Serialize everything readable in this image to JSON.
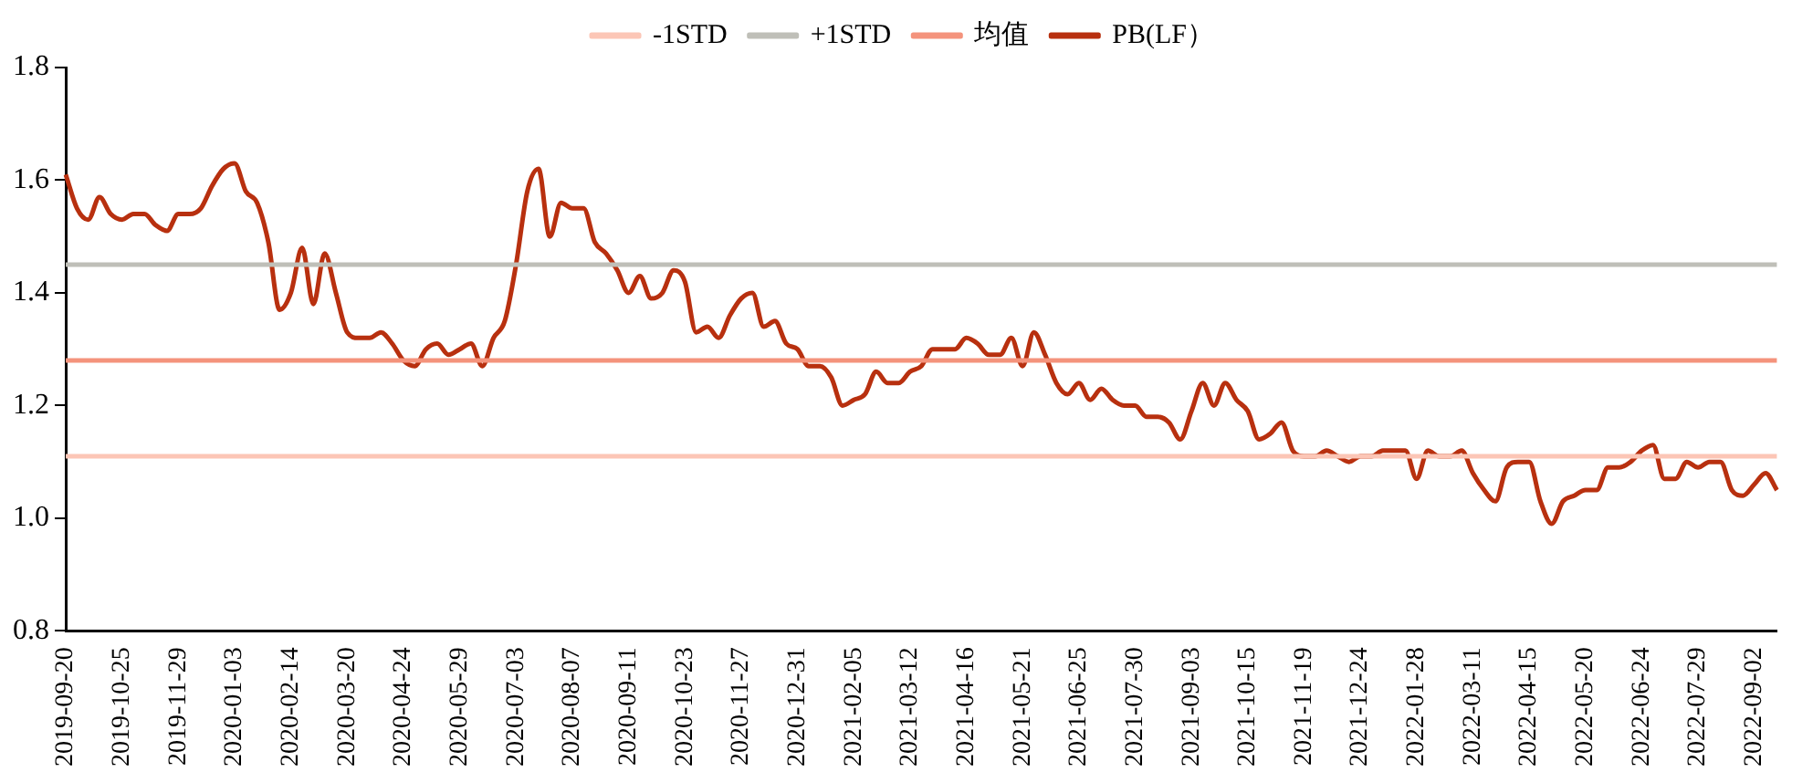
{
  "chart_data": {
    "type": "line",
    "categories": [
      "2019-09-20",
      null,
      null,
      null,
      null,
      "2019-10-25",
      null,
      null,
      null,
      null,
      "2019-11-29",
      null,
      null,
      null,
      null,
      "2020-01-03",
      null,
      null,
      null,
      null,
      "2020-02-14",
      null,
      null,
      null,
      null,
      "2020-03-20",
      null,
      null,
      null,
      null,
      "2020-04-24",
      null,
      null,
      null,
      null,
      "2020-05-29",
      null,
      null,
      null,
      null,
      "2020-07-03",
      null,
      null,
      null,
      null,
      "2020-08-07",
      null,
      null,
      null,
      null,
      "2020-09-11",
      null,
      null,
      null,
      null,
      "2020-10-23",
      null,
      null,
      null,
      null,
      "2020-11-27",
      null,
      null,
      null,
      null,
      "2020-12-31",
      null,
      null,
      null,
      null,
      "2021-02-05",
      null,
      null,
      null,
      null,
      "2021-03-12",
      null,
      null,
      null,
      null,
      "2021-04-16",
      null,
      null,
      null,
      null,
      "2021-05-21",
      null,
      null,
      null,
      null,
      "2021-06-25",
      null,
      null,
      null,
      null,
      "2021-07-30",
      null,
      null,
      null,
      null,
      "2021-09-03",
      null,
      null,
      null,
      null,
      "2021-10-15",
      null,
      null,
      null,
      null,
      "2021-11-19",
      null,
      null,
      null,
      null,
      "2021-12-24",
      null,
      null,
      null,
      null,
      "2022-01-28",
      null,
      null,
      null,
      null,
      "2022-03-11",
      null,
      null,
      null,
      null,
      "2022-04-15",
      null,
      null,
      null,
      null,
      "2022-05-20",
      null,
      null,
      null,
      null,
      "2022-06-24",
      null,
      null,
      null,
      null,
      "2022-07-29",
      null,
      null,
      null,
      null,
      "2022-09-02",
      null,
      null
    ],
    "series": [
      {
        "name": "PB(LF）",
        "color": "#b8300f",
        "values": [
          1.61,
          1.55,
          1.53,
          1.57,
          1.54,
          1.53,
          1.54,
          1.54,
          1.52,
          1.51,
          1.54,
          1.54,
          1.55,
          1.59,
          1.62,
          1.63,
          1.58,
          1.56,
          1.49,
          1.37,
          1.4,
          1.48,
          1.38,
          1.47,
          1.4,
          1.33,
          1.32,
          1.32,
          1.33,
          1.31,
          1.28,
          1.27,
          1.3,
          1.31,
          1.29,
          1.3,
          1.31,
          1.27,
          1.32,
          1.35,
          1.45,
          1.58,
          1.62,
          1.5,
          1.56,
          1.55,
          1.55,
          1.49,
          1.47,
          1.44,
          1.4,
          1.43,
          1.39,
          1.4,
          1.44,
          1.42,
          1.33,
          1.34,
          1.32,
          1.36,
          1.39,
          1.4,
          1.34,
          1.35,
          1.31,
          1.3,
          1.27,
          1.27,
          1.25,
          1.2,
          1.21,
          1.22,
          1.26,
          1.24,
          1.24,
          1.26,
          1.27,
          1.3,
          1.3,
          1.3,
          1.32,
          1.31,
          1.29,
          1.29,
          1.32,
          1.27,
          1.33,
          1.29,
          1.24,
          1.22,
          1.24,
          1.21,
          1.23,
          1.21,
          1.2,
          1.2,
          1.18,
          1.18,
          1.17,
          1.14,
          1.19,
          1.24,
          1.2,
          1.24,
          1.21,
          1.19,
          1.14,
          1.15,
          1.17,
          1.12,
          1.11,
          1.11,
          1.12,
          1.11,
          1.1,
          1.11,
          1.11,
          1.12,
          1.12,
          1.12,
          1.07,
          1.12,
          1.11,
          1.11,
          1.12,
          1.08,
          1.05,
          1.03,
          1.09,
          1.1,
          1.1,
          1.03,
          0.99,
          1.03,
          1.04,
          1.05,
          1.05,
          1.09,
          1.09,
          1.1,
          1.12,
          1.13,
          1.07,
          1.07,
          1.1,
          1.09,
          1.1,
          1.1,
          1.05,
          1.04,
          1.06,
          1.08,
          1.05
        ]
      },
      {
        "name": "均值",
        "color": "#f4937c",
        "values": [
          1.28,
          1.28,
          1.28,
          1.28,
          1.28,
          1.28,
          1.28,
          1.28,
          1.28,
          1.28,
          1.28,
          1.28,
          1.28,
          1.28,
          1.28,
          1.28,
          1.28,
          1.28,
          1.28,
          1.28,
          1.28,
          1.28,
          1.28,
          1.28,
          1.28,
          1.28,
          1.28,
          1.28,
          1.28,
          1.28,
          1.28,
          1.28,
          1.28,
          1.28,
          1.28,
          1.28,
          1.28,
          1.28,
          1.28,
          1.28,
          1.28,
          1.28,
          1.28,
          1.28,
          1.28,
          1.28,
          1.28,
          1.28,
          1.28,
          1.28,
          1.28,
          1.28,
          1.28,
          1.28,
          1.28,
          1.28,
          1.28,
          1.28,
          1.28,
          1.28,
          1.28,
          1.28,
          1.28,
          1.28,
          1.28,
          1.28,
          1.28,
          1.28,
          1.28,
          1.28,
          1.28,
          1.28,
          1.28,
          1.28,
          1.28,
          1.28,
          1.28,
          1.28,
          1.28,
          1.28,
          1.28,
          1.28,
          1.28,
          1.28,
          1.28,
          1.28,
          1.28,
          1.28,
          1.28,
          1.28,
          1.28,
          1.28,
          1.28,
          1.28,
          1.28,
          1.28,
          1.28,
          1.28,
          1.28,
          1.28,
          1.28,
          1.28,
          1.28,
          1.28,
          1.28,
          1.28,
          1.28,
          1.28,
          1.28,
          1.28,
          1.28,
          1.28,
          1.28,
          1.28,
          1.28,
          1.28,
          1.28,
          1.28,
          1.28,
          1.28,
          1.28,
          1.28,
          1.28,
          1.28,
          1.28,
          1.28,
          1.28,
          1.28,
          1.28,
          1.28,
          1.28,
          1.28,
          1.28,
          1.28,
          1.28,
          1.28,
          1.28,
          1.28,
          1.28,
          1.28,
          1.28,
          1.28,
          1.28,
          1.28,
          1.28,
          1.28,
          1.28,
          1.28,
          1.28,
          1.28,
          1.28,
          1.28,
          1.28
        ]
      },
      {
        "name": "+1STD",
        "color": "#bfbfb8",
        "values": [
          1.45,
          1.45,
          1.45,
          1.45,
          1.45,
          1.45,
          1.45,
          1.45,
          1.45,
          1.45,
          1.45,
          1.45,
          1.45,
          1.45,
          1.45,
          1.45,
          1.45,
          1.45,
          1.45,
          1.45,
          1.45,
          1.45,
          1.45,
          1.45,
          1.45,
          1.45,
          1.45,
          1.45,
          1.45,
          1.45,
          1.45,
          1.45,
          1.45,
          1.45,
          1.45,
          1.45,
          1.45,
          1.45,
          1.45,
          1.45,
          1.45,
          1.45,
          1.45,
          1.45,
          1.45,
          1.45,
          1.45,
          1.45,
          1.45,
          1.45,
          1.45,
          1.45,
          1.45,
          1.45,
          1.45,
          1.45,
          1.45,
          1.45,
          1.45,
          1.45,
          1.45,
          1.45,
          1.45,
          1.45,
          1.45,
          1.45,
          1.45,
          1.45,
          1.45,
          1.45,
          1.45,
          1.45,
          1.45,
          1.45,
          1.45,
          1.45,
          1.45,
          1.45,
          1.45,
          1.45,
          1.45,
          1.45,
          1.45,
          1.45,
          1.45,
          1.45,
          1.45,
          1.45,
          1.45,
          1.45,
          1.45,
          1.45,
          1.45,
          1.45,
          1.45,
          1.45,
          1.45,
          1.45,
          1.45,
          1.45,
          1.45,
          1.45,
          1.45,
          1.45,
          1.45,
          1.45,
          1.45,
          1.45,
          1.45,
          1.45,
          1.45,
          1.45,
          1.45,
          1.45,
          1.45,
          1.45,
          1.45,
          1.45,
          1.45,
          1.45,
          1.45,
          1.45,
          1.45,
          1.45,
          1.45,
          1.45,
          1.45,
          1.45,
          1.45,
          1.45,
          1.45,
          1.45,
          1.45,
          1.45,
          1.45,
          1.45,
          1.45,
          1.45,
          1.45,
          1.45,
          1.45,
          1.45,
          1.45,
          1.45,
          1.45,
          1.45,
          1.45,
          1.45,
          1.45,
          1.45,
          1.45,
          1.45,
          1.45
        ]
      },
      {
        "name": "-1STD",
        "color": "#fcc6b6",
        "values": [
          1.11,
          1.11,
          1.11,
          1.11,
          1.11,
          1.11,
          1.11,
          1.11,
          1.11,
          1.11,
          1.11,
          1.11,
          1.11,
          1.11,
          1.11,
          1.11,
          1.11,
          1.11,
          1.11,
          1.11,
          1.11,
          1.11,
          1.11,
          1.11,
          1.11,
          1.11,
          1.11,
          1.11,
          1.11,
          1.11,
          1.11,
          1.11,
          1.11,
          1.11,
          1.11,
          1.11,
          1.11,
          1.11,
          1.11,
          1.11,
          1.11,
          1.11,
          1.11,
          1.11,
          1.11,
          1.11,
          1.11,
          1.11,
          1.11,
          1.11,
          1.11,
          1.11,
          1.11,
          1.11,
          1.11,
          1.11,
          1.11,
          1.11,
          1.11,
          1.11,
          1.11,
          1.11,
          1.11,
          1.11,
          1.11,
          1.11,
          1.11,
          1.11,
          1.11,
          1.11,
          1.11,
          1.11,
          1.11,
          1.11,
          1.11,
          1.11,
          1.11,
          1.11,
          1.11,
          1.11,
          1.11,
          1.11,
          1.11,
          1.11,
          1.11,
          1.11,
          1.11,
          1.11,
          1.11,
          1.11,
          1.11,
          1.11,
          1.11,
          1.11,
          1.11,
          1.11,
          1.11,
          1.11,
          1.11,
          1.11,
          1.11,
          1.11,
          1.11,
          1.11,
          1.11,
          1.11,
          1.11,
          1.11,
          1.11,
          1.11,
          1.11,
          1.11,
          1.11,
          1.11,
          1.11,
          1.11,
          1.11,
          1.11,
          1.11,
          1.11,
          1.11,
          1.11,
          1.11,
          1.11,
          1.11,
          1.11,
          1.11,
          1.11,
          1.11,
          1.11,
          1.11,
          1.11,
          1.11,
          1.11,
          1.11,
          1.11,
          1.11,
          1.11,
          1.11,
          1.11,
          1.11,
          1.11,
          1.11,
          1.11,
          1.11,
          1.11,
          1.11,
          1.11,
          1.11,
          1.11,
          1.11,
          1.11,
          1.11
        ]
      }
    ],
    "ylim": [
      0.8,
      1.8
    ],
    "yticks": [
      0.8,
      {
        "value": 1,
        "label": "1.0"
      },
      1.2,
      1.4,
      1.6,
      1.8
    ],
    "grid": false,
    "legend": "top",
    "line_style": "solid",
    "marker": "none"
  }
}
